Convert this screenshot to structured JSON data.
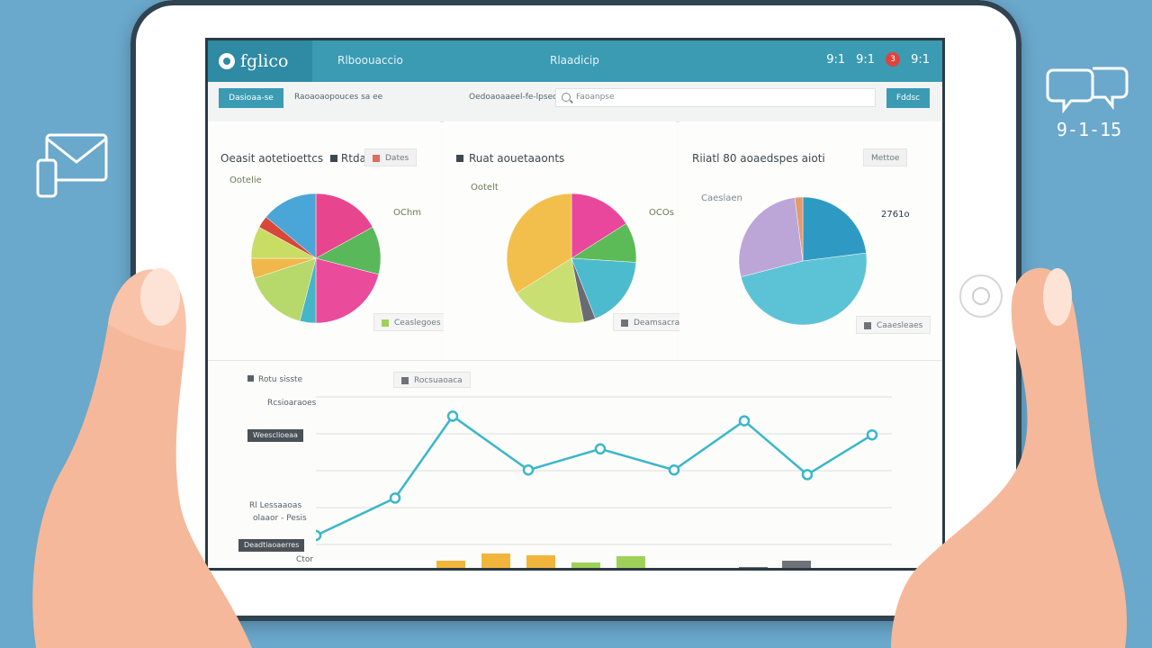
{
  "app": {
    "logo_text": "fglico",
    "nav": [
      "Rlboouaccio",
      "Rlaadicip"
    ],
    "status": [
      "9:1",
      "9:1",
      "9:1"
    ],
    "badge": "3"
  },
  "subbar": {
    "tab_label": "Dasioaa-se",
    "text1": "Raoaoaopouces sa ee",
    "text2": "Oedoaoaaeel-fe-lpseo",
    "search_placeholder": "Faoanpse",
    "button_label": "Fddsc"
  },
  "panels": [
    {
      "title": "Oeasit aotetioettcs",
      "title_badge": "Rtda",
      "chip": "Dates",
      "label_left": "Ootelie",
      "label_right": "OChm",
      "legend": "Ceaslegoes",
      "slices": [
        {
          "value": 17,
          "color": "#e8458f"
        },
        {
          "value": 12,
          "color": "#58b85a"
        },
        {
          "value": 21,
          "color": "#ea4b9b"
        },
        {
          "value": 4,
          "color": "#44b6c8"
        },
        {
          "value": 16,
          "color": "#b7d86a"
        },
        {
          "value": 5,
          "color": "#f0b84a"
        },
        {
          "value": 8,
          "color": "#c9dd64"
        },
        {
          "value": 3,
          "color": "#d9463a"
        },
        {
          "value": 14,
          "color": "#4aa6d6"
        }
      ]
    },
    {
      "title": "Ruat aouetaaonts",
      "chip": "",
      "label_left": "Ootelt",
      "label_right": "OCOs",
      "legend": "Deamsacrats",
      "slices": [
        {
          "value": 16,
          "color": "#e8479b"
        },
        {
          "value": 10,
          "color": "#5cbb56"
        },
        {
          "value": 18,
          "color": "#4dbbce"
        },
        {
          "value": 3,
          "color": "#6a6a72"
        },
        {
          "value": 19,
          "color": "#c9df72"
        },
        {
          "value": 34,
          "color": "#f2bf4c"
        }
      ]
    },
    {
      "title": "Riiatl 80 aoaedspes aioti",
      "chip": "Mettoe",
      "label_left": "Caeslaen",
      "label_right": "2761o",
      "legend": "Caaesleaes",
      "slices": [
        {
          "value": 23,
          "color": "#2e9ac4"
        },
        {
          "value": 48,
          "color": "#5cc3d6"
        },
        {
          "value": 27,
          "color": "#bca6d8"
        },
        {
          "value": 2,
          "color": "#e49a6c"
        }
      ]
    }
  ],
  "line_chart": {
    "legend_left": "Rotu sisste",
    "legend_right": "Rocsuaoaca",
    "y_labels": [
      "Rcsioaraoes",
      "Weesclioeaa",
      "Rl Lessaaoas",
      "olaaor - Pesis",
      "Deadtiaoaerres",
      "Ctor"
    ],
    "points": [
      10,
      26,
      61,
      38,
      47,
      38,
      59,
      36,
      53
    ],
    "bars": [
      {
        "value": 14,
        "color": "#f2b53c"
      },
      {
        "value": 22,
        "color": "#f2b53c"
      },
      {
        "value": 20,
        "color": "#f2b53c"
      },
      {
        "value": 12,
        "color": "#9fd15a"
      },
      {
        "value": 19,
        "color": "#9fd15a"
      },
      {
        "value": 7,
        "color": "#6f7379"
      },
      {
        "value": 14,
        "color": "#6f7379"
      }
    ]
  },
  "side": {
    "right_label": "9-1-15"
  },
  "colors": {
    "background": "#6aa8cc",
    "accent": "#3a9bb3",
    "line": "#3ab7c9"
  }
}
